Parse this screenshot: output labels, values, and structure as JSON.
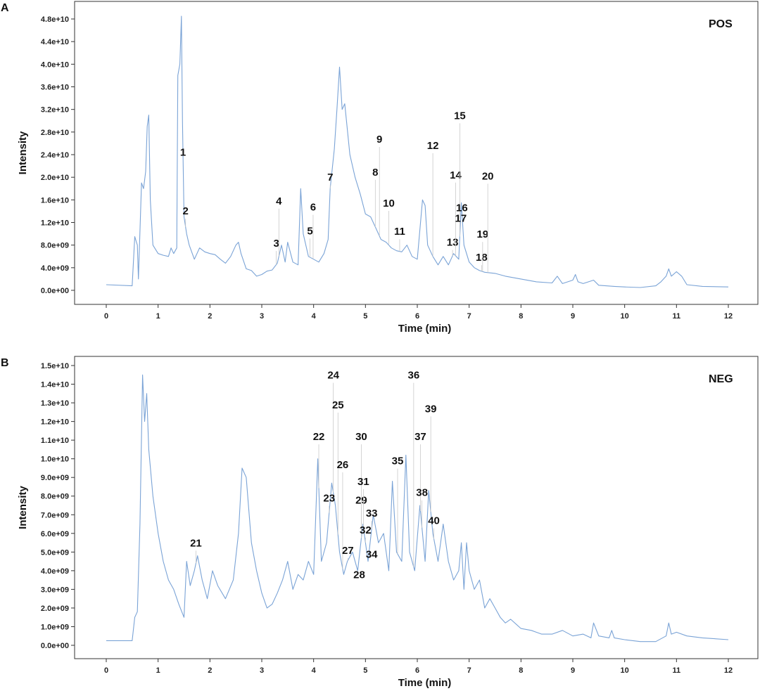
{
  "chart_data": [
    {
      "type": "line",
      "panel_letter": "A",
      "mode_label": "POS",
      "xlabel": "Time (min)",
      "ylabel": "Intensity",
      "xlim": [
        0,
        12
      ],
      "ylim": [
        0,
        48000000000.0
      ],
      "x_ticks": [
        0,
        1,
        2,
        3,
        4,
        5,
        6,
        7,
        8,
        9,
        10,
        11,
        12
      ],
      "y_ticks": [
        0,
        4000000000.0,
        8000000000.0,
        12000000000.0,
        16000000000.0,
        20000000000.0,
        24000000000.0,
        28000000000.0,
        32000000000.0,
        36000000000.0,
        40000000000.0,
        44000000000.0,
        48000000000.0
      ],
      "y_tick_labels": [
        "0.0e+00",
        "4.0e+09",
        "8.0e+09",
        "1.2e+10",
        "1.6e+10",
        "2.0e+10",
        "2.4e+10",
        "2.8e+10",
        "3.2e+10",
        "3.6e+10",
        "4.0e+10",
        "4.4e+10",
        "4.8e+10"
      ],
      "series": [
        {
          "x": [
            0,
            0.5,
            0.55,
            0.6,
            0.62,
            0.68,
            0.72,
            0.76,
            0.79,
            0.82,
            0.85,
            0.9,
            1.0,
            1.1,
            1.2,
            1.25,
            1.3,
            1.36,
            1.38,
            1.42,
            1.45,
            1.47,
            1.5,
            1.55,
            1.6,
            1.7,
            1.8,
            1.9,
            2.0,
            2.1,
            2.2,
            2.3,
            2.4,
            2.5,
            2.55,
            2.6,
            2.7,
            2.8,
            2.9,
            3.0,
            3.1,
            3.2,
            3.3,
            3.38,
            3.45,
            3.5,
            3.6,
            3.7,
            3.75,
            3.8,
            3.9,
            4.0,
            4.1,
            4.2,
            4.28,
            4.32,
            4.4,
            4.45,
            4.5,
            4.55,
            4.6,
            4.7,
            4.8,
            4.9,
            5.0,
            5.1,
            5.2,
            5.3,
            5.4,
            5.5,
            5.6,
            5.7,
            5.8,
            5.9,
            6.0,
            6.1,
            6.15,
            6.2,
            6.3,
            6.4,
            6.5,
            6.6,
            6.7,
            6.8,
            6.85,
            6.9,
            7.0,
            7.1,
            7.2,
            7.3,
            7.5,
            7.7,
            8.0,
            8.3,
            8.6,
            8.7,
            8.8,
            9.0,
            9.05,
            9.1,
            9.2,
            9.4,
            9.5,
            9.8,
            10.0,
            10.3,
            10.6,
            10.7,
            10.8,
            10.85,
            10.9,
            11.0,
            11.1,
            11.2,
            11.5,
            12.0
          ],
          "values": [
            1000000000.0,
            800000000.0,
            9500000000.0,
            8000000000.0,
            2000000000.0,
            19000000000.0,
            18000000000.0,
            21000000000.0,
            29000000000.0,
            31000000000.0,
            16000000000.0,
            8000000000.0,
            6500000000.0,
            6200000000.0,
            6000000000.0,
            7500000000.0,
            6500000000.0,
            7500000000.0,
            38000000000.0,
            40000000000.0,
            48500000000.0,
            30000000000.0,
            13000000000.0,
            10000000000.0,
            8000000000.0,
            5500000000.0,
            7500000000.0,
            6800000000.0,
            6500000000.0,
            6300000000.0,
            5500000000.0,
            4800000000.0,
            6000000000.0,
            8000000000.0,
            8500000000.0,
            6500000000.0,
            3800000000.0,
            3500000000.0,
            2500000000.0,
            2800000000.0,
            3400000000.0,
            3600000000.0,
            4800000000.0,
            8000000000.0,
            5000000000.0,
            8500000000.0,
            5000000000.0,
            4500000000.0,
            18000000000.0,
            10000000000.0,
            6000000000.0,
            5500000000.0,
            5000000000.0,
            6500000000.0,
            9000000000.0,
            18000000000.0,
            25000000000.0,
            32000000000.0,
            39500000000.0,
            32000000000.0,
            33000000000.0,
            24000000000.0,
            20000000000.0,
            17000000000.0,
            13500000000.0,
            13000000000.0,
            11000000000.0,
            9000000000.0,
            8500000000.0,
            7500000000.0,
            7000000000.0,
            6800000000.0,
            8000000000.0,
            6000000000.0,
            5500000000.0,
            16000000000.0,
            15000000000.0,
            8000000000.0,
            6000000000.0,
            4500000000.0,
            6000000000.0,
            4500000000.0,
            6500000000.0,
            5500000000.0,
            15500000000.0,
            8000000000.0,
            5000000000.0,
            4000000000.0,
            3500000000.0,
            3200000000.0,
            3000000000.0,
            2500000000.0,
            2000000000.0,
            1500000000.0,
            1300000000.0,
            2500000000.0,
            1200000000.0,
            1800000000.0,
            2800000000.0,
            1500000000.0,
            1200000000.0,
            1800000000.0,
            900000000.0,
            700000000.0,
            600000000.0,
            500000000.0,
            800000000.0,
            1500000000.0,
            2500000000.0,
            3800000000.0,
            2500000000.0,
            3300000000.0,
            2500000000.0,
            1000000000.0,
            700000000.0,
            600000000.0
          ]
        }
      ],
      "peaks": [
        {
          "label": "1",
          "x": 1.48,
          "y": 23800000000.0
        },
        {
          "label": "2",
          "x": 1.53,
          "y": 13400000000.0
        },
        {
          "label": "3",
          "x": 3.28,
          "y": 7700000000.0
        },
        {
          "label": "4",
          "x": 3.33,
          "y": 15200000000.0
        },
        {
          "label": "5",
          "x": 3.93,
          "y": 9900000000.0
        },
        {
          "label": "6",
          "x": 3.99,
          "y": 14100000000.0
        },
        {
          "label": "7",
          "x": 4.32,
          "y": 19400000000.0
        },
        {
          "label": "8",
          "x": 5.19,
          "y": 20300000000.0
        },
        {
          "label": "9",
          "x": 5.27,
          "y": 26100000000.0
        },
        {
          "label": "10",
          "x": 5.45,
          "y": 14800000000.0
        },
        {
          "label": "11",
          "x": 5.66,
          "y": 9800000000.0
        },
        {
          "label": "12",
          "x": 6.3,
          "y": 25000000000.0
        },
        {
          "label": "13",
          "x": 6.68,
          "y": 7900000000.0
        },
        {
          "label": "14",
          "x": 6.74,
          "y": 19800000000.0
        },
        {
          "label": "15",
          "x": 6.82,
          "y": 30300000000.0
        },
        {
          "label": "16",
          "x": 6.86,
          "y": 14000000000.0
        },
        {
          "label": "17",
          "x": 6.84,
          "y": 12100000000.0
        },
        {
          "label": "18",
          "x": 7.24,
          "y": 5200000000.0
        },
        {
          "label": "19",
          "x": 7.26,
          "y": 9300000000.0
        },
        {
          "label": "20",
          "x": 7.36,
          "y": 19600000000.0
        }
      ]
    },
    {
      "type": "line",
      "panel_letter": "B",
      "mode_label": "NEG",
      "xlabel": "Time (min)",
      "ylabel": "Intensity",
      "xlim": [
        0,
        12
      ],
      "ylim": [
        0,
        15000000000.0
      ],
      "x_ticks": [
        0,
        1,
        2,
        3,
        4,
        5,
        6,
        7,
        8,
        9,
        10,
        11,
        12
      ],
      "y_ticks": [
        0,
        1000000000.0,
        2000000000.0,
        3000000000.0,
        4000000000.0,
        5000000000.0,
        6000000000.0,
        7000000000.0,
        8000000000.0,
        9000000000.0,
        10000000000.0,
        11000000000.0,
        12000000000.0,
        13000000000.0,
        14000000000.0,
        15000000000.0
      ],
      "y_tick_labels": [
        "0.0e+00",
        "1.0e+09",
        "2.0e+09",
        "3.0e+09",
        "4.0e+09",
        "5.0e+09",
        "6.0e+09",
        "7.0e+09",
        "8.0e+09",
        "9.0e+09",
        "1.0e+10",
        "1.1e+10",
        "1.2e+10",
        "1.3e+10",
        "1.4e+10",
        "1.5e+10"
      ],
      "series": [
        {
          "x": [
            0,
            0.5,
            0.55,
            0.6,
            0.65,
            0.7,
            0.74,
            0.78,
            0.82,
            0.9,
            1.0,
            1.1,
            1.2,
            1.3,
            1.4,
            1.5,
            1.55,
            1.62,
            1.7,
            1.76,
            1.85,
            1.95,
            2.05,
            2.15,
            2.3,
            2.45,
            2.55,
            2.62,
            2.7,
            2.8,
            2.9,
            3.0,
            3.1,
            3.2,
            3.3,
            3.4,
            3.5,
            3.6,
            3.7,
            3.8,
            3.9,
            4.0,
            4.08,
            4.15,
            4.25,
            4.35,
            4.42,
            4.5,
            4.58,
            4.65,
            4.75,
            4.85,
            4.95,
            5.05,
            5.15,
            5.25,
            5.35,
            5.45,
            5.52,
            5.6,
            5.7,
            5.78,
            5.85,
            5.95,
            6.05,
            6.15,
            6.22,
            6.3,
            6.4,
            6.5,
            6.6,
            6.7,
            6.8,
            6.85,
            6.9,
            6.95,
            7.0,
            7.1,
            7.2,
            7.3,
            7.4,
            7.5,
            7.6,
            7.7,
            7.8,
            8.0,
            8.2,
            8.4,
            8.6,
            8.8,
            9.0,
            9.2,
            9.35,
            9.4,
            9.5,
            9.7,
            9.75,
            9.8,
            10.0,
            10.3,
            10.6,
            10.8,
            10.85,
            10.9,
            11.0,
            11.2,
            11.5,
            12.0
          ],
          "values": [
            250000000.0,
            250000000.0,
            1500000000.0,
            1800000000.0,
            6500000000.0,
            14500000000.0,
            12000000000.0,
            13500000000.0,
            10500000000.0,
            8000000000.0,
            6000000000.0,
            4500000000.0,
            3500000000.0,
            3000000000.0,
            2200000000.0,
            1500000000.0,
            4500000000.0,
            3200000000.0,
            4000000000.0,
            4800000000.0,
            3500000000.0,
            2500000000.0,
            4000000000.0,
            3200000000.0,
            2500000000.0,
            3500000000.0,
            6000000000.0,
            9500000000.0,
            9000000000.0,
            5500000000.0,
            4000000000.0,
            2800000000.0,
            2000000000.0,
            2200000000.0,
            2800000000.0,
            3500000000.0,
            4500000000.0,
            3000000000.0,
            3800000000.0,
            3500000000.0,
            4500000000.0,
            3800000000.0,
            10000000000.0,
            4500000000.0,
            5500000000.0,
            8700000000.0,
            7500000000.0,
            5000000000.0,
            3800000000.0,
            4500000000.0,
            5000000000.0,
            4000000000.0,
            6500000000.0,
            4500000000.0,
            7000000000.0,
            5500000000.0,
            6000000000.0,
            4000000000.0,
            8800000000.0,
            5000000000.0,
            4500000000.0,
            10200000000.0,
            5000000000.0,
            4000000000.0,
            7500000000.0,
            4500000000.0,
            8300000000.0,
            6000000000.0,
            4500000000.0,
            6500000000.0,
            4500000000.0,
            3500000000.0,
            4000000000.0,
            5500000000.0,
            3000000000.0,
            5500000000.0,
            4000000000.0,
            3000000000.0,
            3500000000.0,
            2000000000.0,
            2500000000.0,
            2000000000.0,
            1500000000.0,
            1200000000.0,
            1400000000.0,
            900000000.0,
            800000000.0,
            600000000.0,
            600000000.0,
            800000000.0,
            500000000.0,
            600000000.0,
            400000000.0,
            1200000000.0,
            500000000.0,
            400000000.0,
            800000000.0,
            400000000.0,
            300000000.0,
            200000000.0,
            200000000.0,
            500000000.0,
            1200000000.0,
            600000000.0,
            700000000.0,
            500000000.0,
            400000000.0,
            300000000.0
          ]
        }
      ],
      "peaks": [
        {
          "label": "21",
          "x": 1.73,
          "y": 5300000000.0
        },
        {
          "label": "22",
          "x": 4.1,
          "y": 11000000000.0
        },
        {
          "label": "23",
          "x": 4.3,
          "y": 7700000000.0
        },
        {
          "label": "24",
          "x": 4.38,
          "y": 14300000000.0
        },
        {
          "label": "25",
          "x": 4.47,
          "y": 12700000000.0
        },
        {
          "label": "26",
          "x": 4.56,
          "y": 9500000000.0
        },
        {
          "label": "27",
          "x": 4.66,
          "y": 4900000000.0
        },
        {
          "label": "28",
          "x": 4.88,
          "y": 3600000000.0
        },
        {
          "label": "29",
          "x": 4.92,
          "y": 7600000000.0
        },
        {
          "label": "30",
          "x": 4.92,
          "y": 11000000000.0
        },
        {
          "label": "31",
          "x": 4.96,
          "y": 8600000000.0
        },
        {
          "label": "32",
          "x": 5.0,
          "y": 6000000000.0
        },
        {
          "label": "33",
          "x": 5.12,
          "y": 6900000000.0
        },
        {
          "label": "34",
          "x": 5.12,
          "y": 4700000000.0
        },
        {
          "label": "35",
          "x": 5.62,
          "y": 9700000000.0
        },
        {
          "label": "36",
          "x": 5.93,
          "y": 14300000000.0
        },
        {
          "label": "37",
          "x": 6.06,
          "y": 11000000000.0
        },
        {
          "label": "38",
          "x": 6.09,
          "y": 8000000000.0
        },
        {
          "label": "39",
          "x": 6.26,
          "y": 12500000000.0
        },
        {
          "label": "40",
          "x": 6.32,
          "y": 6500000000.0
        }
      ]
    }
  ]
}
